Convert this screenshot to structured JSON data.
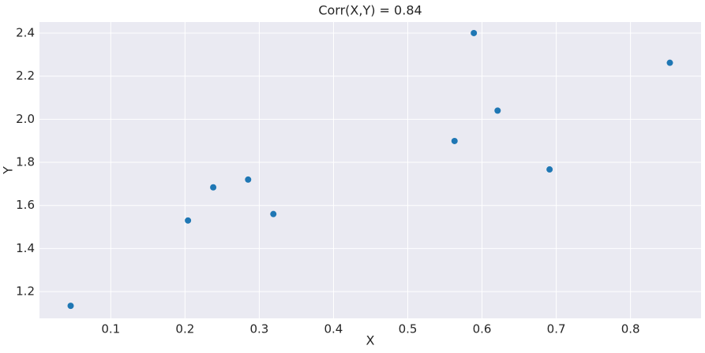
{
  "chart_data": {
    "type": "scatter",
    "title": "Corr(X,Y) = 0.84",
    "xlabel": "X",
    "ylabel": "Y",
    "x": [
      0.046,
      0.204,
      0.238,
      0.285,
      0.319,
      0.563,
      0.589,
      0.621,
      0.691,
      0.853
    ],
    "values": [
      1.134,
      1.53,
      1.684,
      1.72,
      1.56,
      1.899,
      2.4,
      2.04,
      1.767,
      2.262
    ],
    "color": "#1f77b4",
    "xlim": [
      0.004,
      0.895
    ],
    "ylim": [
      1.076,
      2.451
    ],
    "xticks": [
      0.1,
      0.2,
      0.3,
      0.4,
      0.5,
      0.6,
      0.7,
      0.8
    ],
    "yticks": [
      1.2,
      1.4,
      1.6,
      1.8,
      {
        "value": 2,
        "label": "2.0"
      },
      2.2,
      2.4
    ],
    "grid": true
  }
}
